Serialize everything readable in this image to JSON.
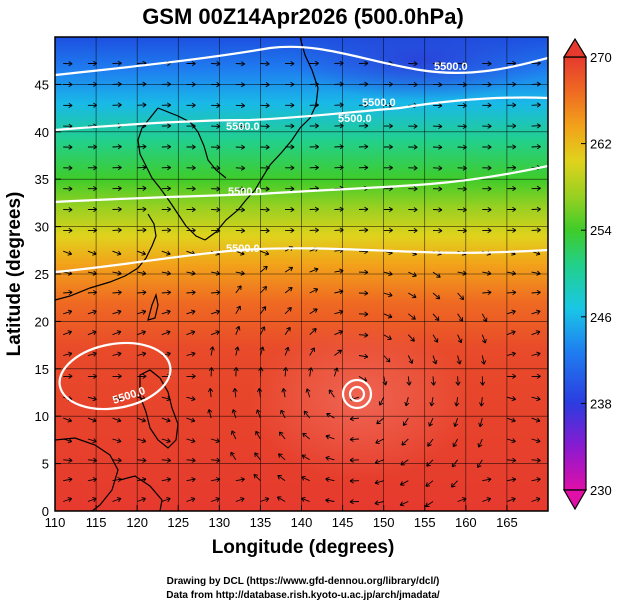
{
  "title": "GSM 00Z14Apr2026 (500.0hPa)",
  "x_axis": {
    "label": "Longitude (degrees)",
    "range": [
      110,
      170
    ],
    "ticks": [
      "110",
      "115",
      "120",
      "125",
      "130",
      "135",
      "140",
      "145",
      "150",
      "155",
      "160",
      "165"
    ],
    "tick_values": [
      110,
      115,
      120,
      125,
      130,
      135,
      140,
      145,
      150,
      155,
      160,
      165
    ]
  },
  "y_axis": {
    "label": "Latitude  (degrees)",
    "range": [
      0,
      50
    ],
    "ticks": [
      "0",
      "5",
      "10",
      "15",
      "20",
      "25",
      "30",
      "35",
      "40",
      "45"
    ],
    "tick_values": [
      0,
      5,
      10,
      15,
      20,
      25,
      30,
      35,
      40,
      45
    ]
  },
  "colorbar": {
    "range": [
      230,
      270
    ],
    "ticks": [
      "230",
      "238",
      "246",
      "254",
      "262",
      "270"
    ],
    "tick_values": [
      230,
      238,
      246,
      254,
      262,
      270
    ],
    "colors": [
      "#e00fa8",
      "#8a1ad0",
      "#2b3ce0",
      "#1f7ef0",
      "#19c7e6",
      "#22d08a",
      "#3fcc2a",
      "#9ad021",
      "#e0d21c",
      "#f2a21a",
      "#ef6a22",
      "#e63a2e"
    ]
  },
  "contours": {
    "labels": [
      "5500.0",
      "5500.0",
      "5500.0",
      "5500.0",
      "5500.0",
      "5500.0",
      "5500.0"
    ],
    "line_color": "#ffffff"
  },
  "features": {
    "low_center": {
      "lon": 146.5,
      "lat": 13.5
    }
  },
  "credits": {
    "line1": "Drawing by DCL (https://www.gfd-dennou.org/library/dcl/)",
    "line2": "Data from http://database.rish.kyoto-u.ac.jp/arch/jmadata/"
  }
}
